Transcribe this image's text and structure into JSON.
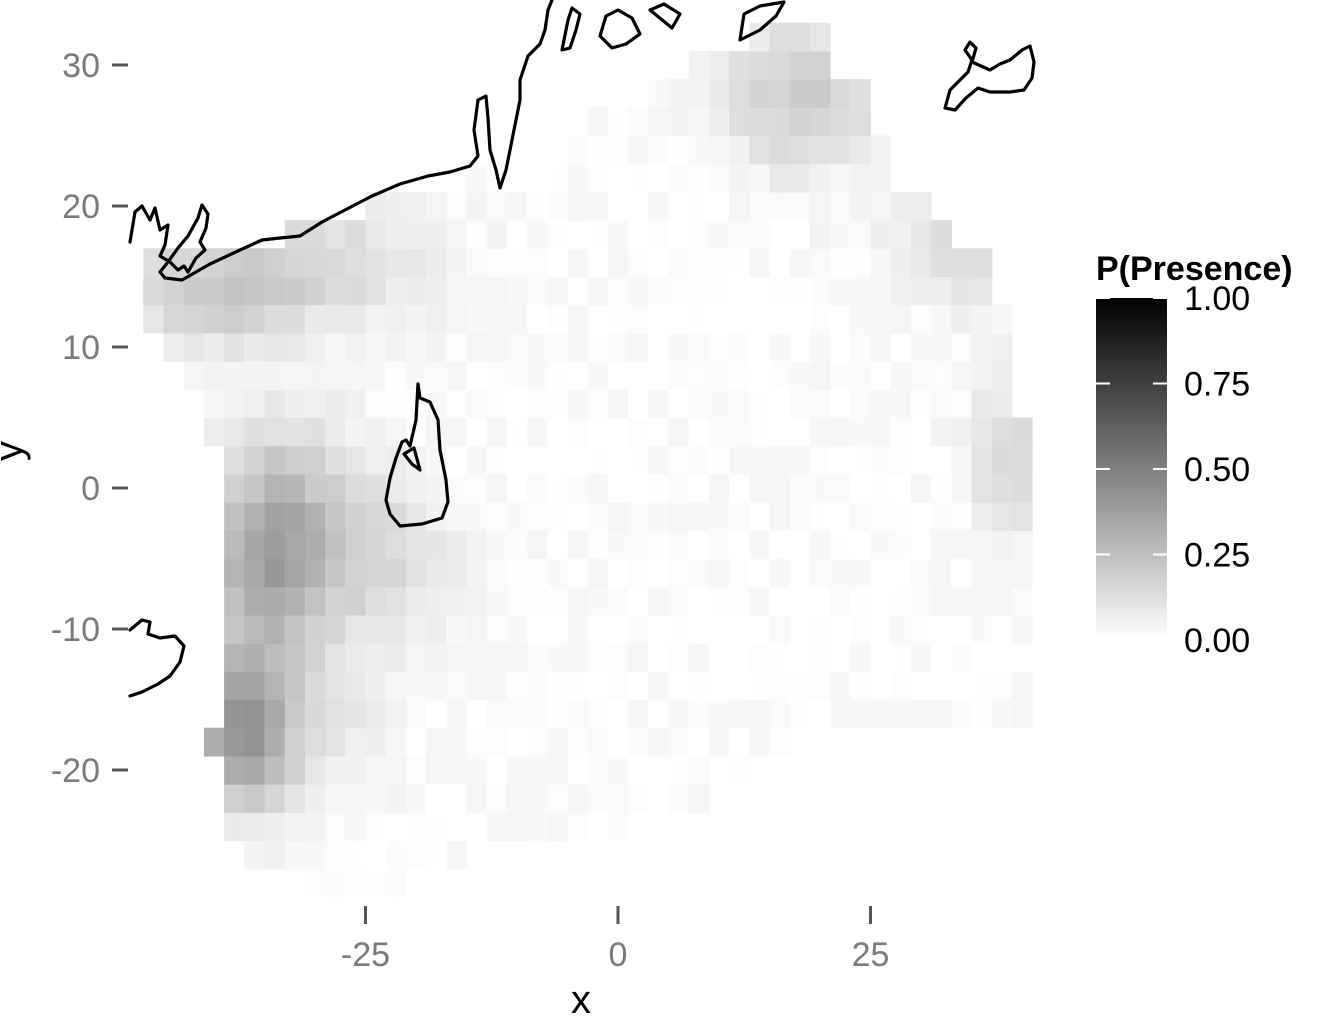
{
  "chart_data": {
    "type": "heatmap",
    "title": "",
    "xlabel": "x",
    "ylabel": "y",
    "xlim": [
      -48.5,
      41
    ],
    "ylim": [
      -28.5,
      32.5
    ],
    "x_ticks": [
      -25,
      0,
      25
    ],
    "x_tick_labels": [
      "-25",
      "0",
      "25"
    ],
    "y_ticks": [
      -20,
      -10,
      0,
      10,
      20,
      30
    ],
    "y_tick_labels": [
      "-20",
      "-10",
      "0",
      "10",
      "20",
      "30"
    ],
    "cell_size": 2,
    "color_scale": {
      "low": "#ffffff",
      "high": "#000000",
      "min": 0,
      "max": 1
    },
    "legend": {
      "title": "P(Presence)",
      "position": "right",
      "breaks": [
        1.0,
        0.75,
        0.5,
        0.25,
        0.0
      ],
      "labels": [
        "1.00",
        "0.75",
        "0.50",
        "0.25",
        "0.00"
      ]
    },
    "grid": false,
    "value_model": "Cells cover the region bounded by x from -46 to 40 and y from -28 to 32. Each cell value is sampled from the map: near 0 in the open centre, 0.1-0.3 along the northern and western shores, peaking near 0.5 at x about -38, y about -17."
  }
}
